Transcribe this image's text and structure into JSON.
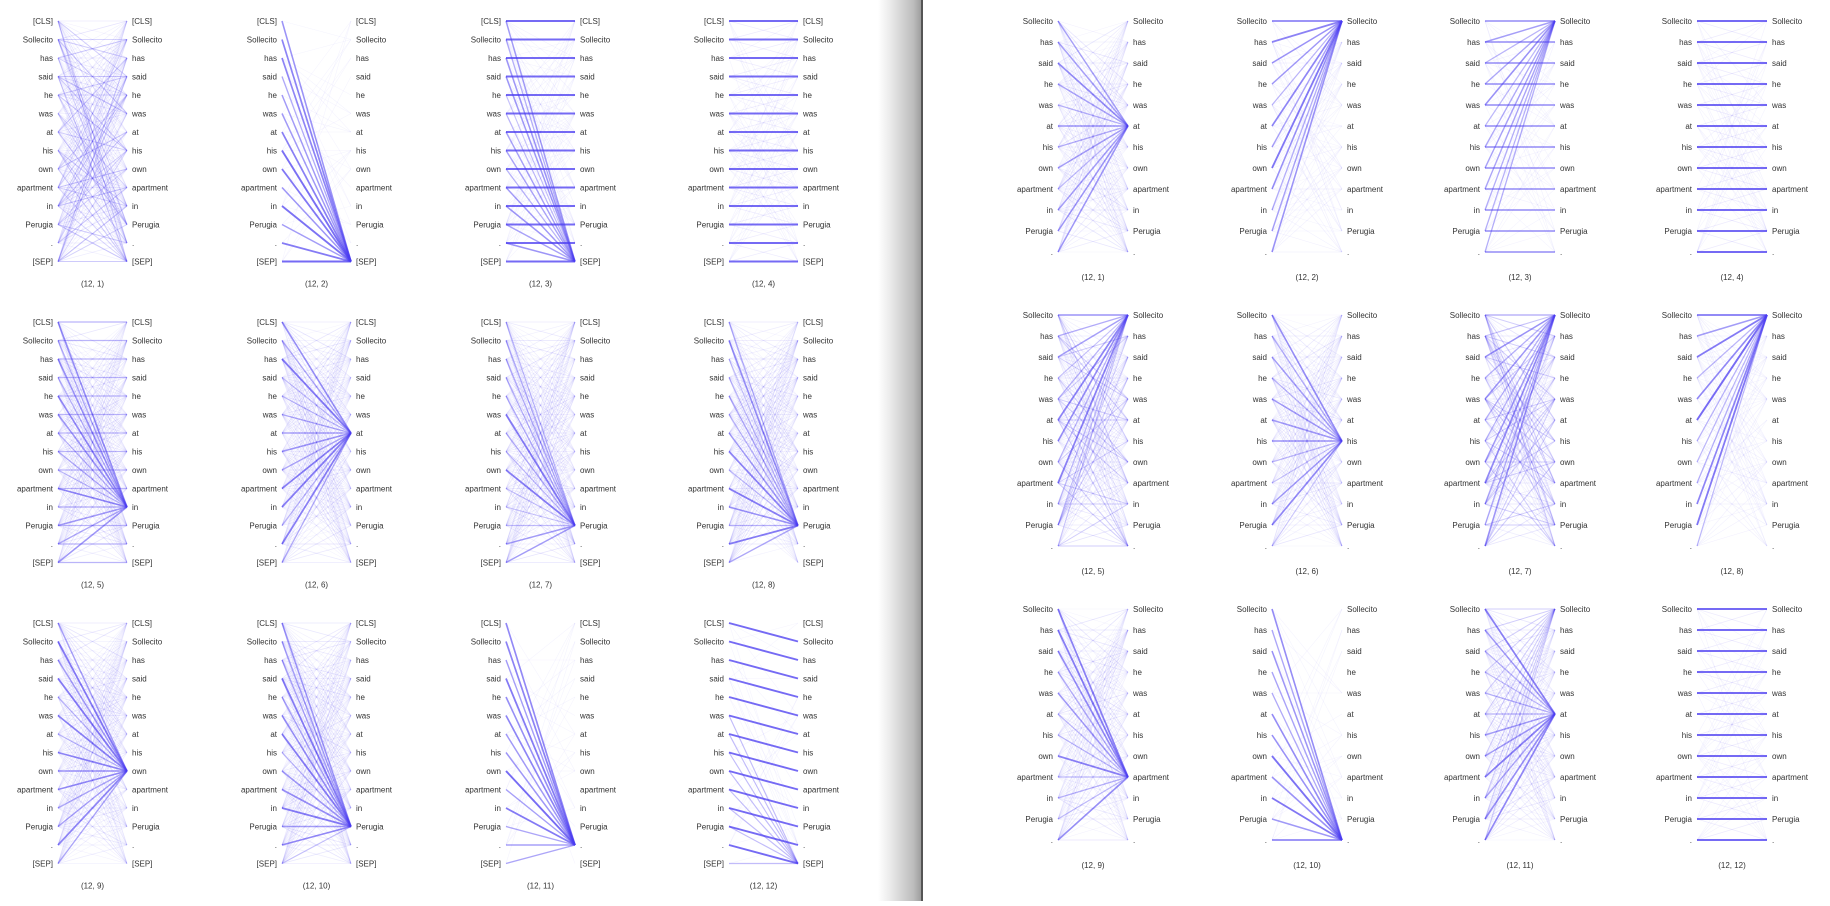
{
  "panels": [
    {
      "id": "left",
      "tokens": [
        "[CLS]",
        "Sollecito",
        "has",
        "said",
        "he",
        "was",
        "at",
        "his",
        "own",
        "apartment",
        "in",
        "Perugia",
        ".",
        "[SEP]"
      ],
      "layer": 12,
      "heads": [
        1,
        2,
        3,
        4,
        5,
        6,
        7,
        8,
        9,
        10,
        11,
        12
      ],
      "head_labels": [
        "(12, 1)",
        "(12, 2)",
        "(12, 3)",
        "(12, 4)",
        "(12, 5)",
        "(12, 6)",
        "(12, 7)",
        "(12, 8)",
        "(12, 9)",
        "(12, 10)",
        "(12, 11)",
        "(12, 12)"
      ],
      "attention_patterns": [
        "diffuse",
        "to-sep",
        "diag-to-sep",
        "diagonal",
        "to-in",
        "to-at",
        "to-perugia",
        "to-perugia",
        "to-own",
        "to-perugia",
        "to-period",
        "next-token"
      ]
    },
    {
      "id": "right",
      "tokens": [
        "Sollecito",
        "has",
        "said",
        "he",
        "was",
        "at",
        "his",
        "own",
        "apartment",
        "in",
        "Perugia",
        "."
      ],
      "layer": 12,
      "heads": [
        1,
        2,
        3,
        4,
        5,
        6,
        7,
        8,
        9,
        10,
        11,
        12
      ],
      "head_labels": [
        "(12, 1)",
        "(12, 2)",
        "(12, 3)",
        "(12, 4)",
        "(12, 5)",
        "(12, 6)",
        "(12, 7)",
        "(12, 8)",
        "(12, 9)",
        "(12, 10)",
        "(12, 11)",
        "(12, 12)"
      ],
      "attention_patterns": [
        "to-at",
        "to-sollecito",
        "diag-to-sollecito",
        "diagonal",
        "to-sollecito-spread",
        "to-his",
        "to-sollecito-spread",
        "to-sollecito",
        "to-apartment",
        "to-period",
        "to-at-spread",
        "diagonal"
      ]
    }
  ],
  "colors": {
    "edge": "#4b3cf0",
    "text": "#333333",
    "background": "#ffffff"
  }
}
